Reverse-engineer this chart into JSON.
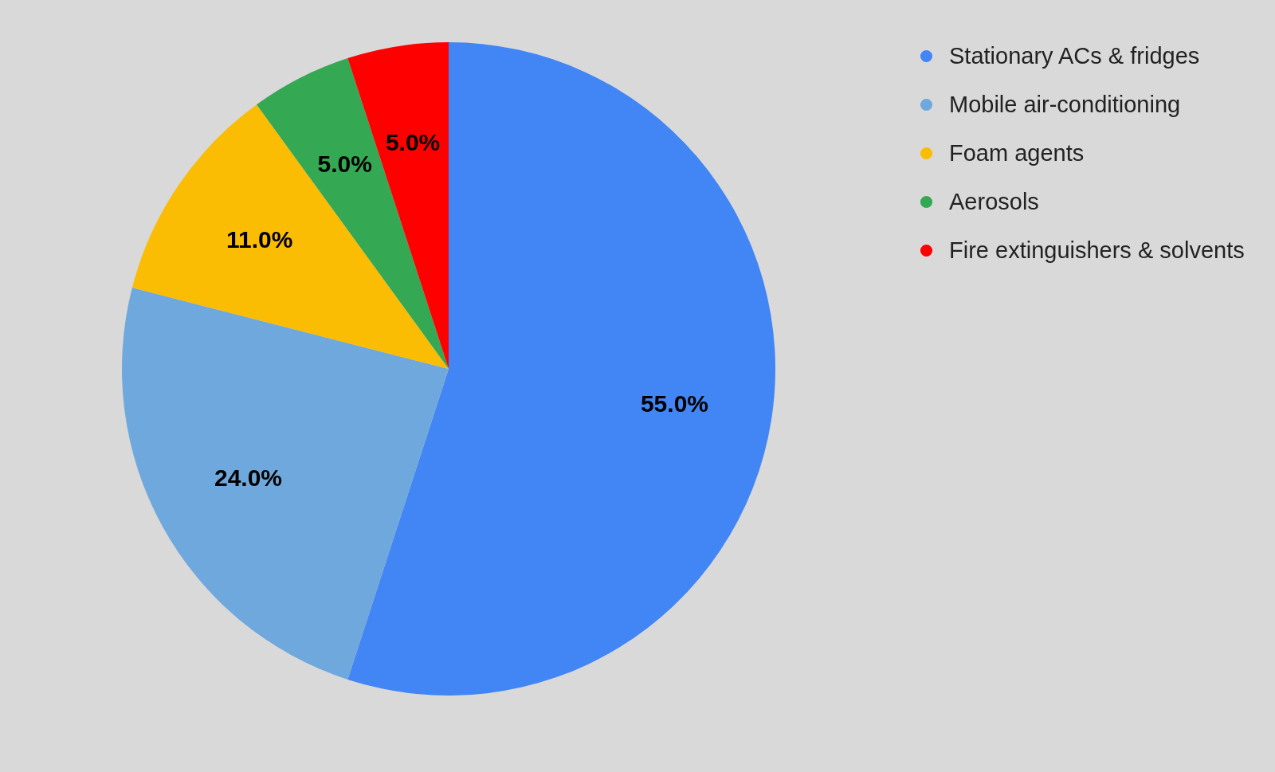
{
  "chart_data": {
    "type": "pie",
    "categories": [
      "Stationary ACs & fridges",
      "Mobile air-conditioning",
      "Foam agents",
      "Aerosols",
      "Fire extinguishers & solvents"
    ],
    "values": [
      55,
      24,
      11,
      5,
      5
    ],
    "colors": [
      "#4285f4",
      "#6fa8dc",
      "#fbbc04",
      "#34a853",
      "#ff0000"
    ],
    "value_labels": [
      "55.0%",
      "24.0%",
      "11.0%",
      "5.0%",
      "5.0%"
    ],
    "legend": "top right"
  }
}
